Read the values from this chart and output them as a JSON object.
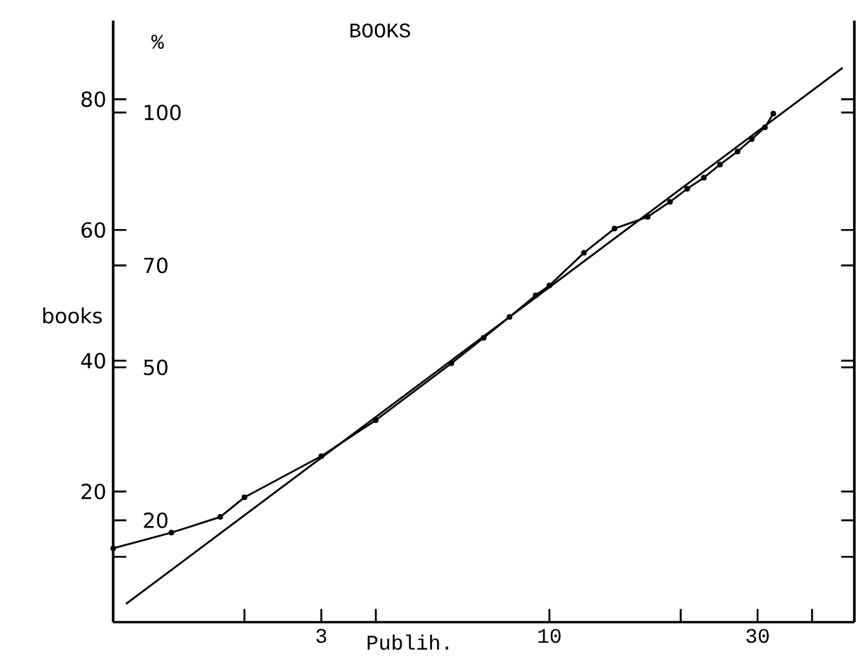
{
  "chart_data": {
    "type": "line",
    "title": "BOOKS",
    "xlabel": "Publih.",
    "ylabel": "books",
    "y2label": "%",
    "log": "x",
    "xlim": [
      1,
      50
    ],
    "ylim": [
      0,
      92
    ],
    "y2lim": [
      0,
      118
    ],
    "xticks": [
      {
        "value": 2,
        "label": null
      },
      3,
      {
        "value": 4,
        "label": null
      },
      10,
      {
        "value": 20,
        "label": null
      },
      30,
      {
        "value": 40,
        "label": null
      }
    ],
    "yticks": [
      {
        "value": 10,
        "label": null
      },
      20,
      40,
      60,
      80
    ],
    "y2ticks": [
      20,
      50,
      70,
      100
    ],
    "series": [
      {
        "color": "#000000",
        "marker": "circle",
        "line_style": "solid",
        "x": [
          1.0,
          1.36,
          1.76,
          2,
          3,
          4,
          5.96,
          7.07,
          8.1,
          9.3,
          10,
          12,
          14.1,
          16.8,
          18.9,
          20.7,
          22.6,
          24.6,
          27,
          29.1,
          31.2,
          32.6
        ],
        "values": [
          11.3,
          13.7,
          16.1,
          19.1,
          25.4,
          30.9,
          39.6,
          43.5,
          46.7,
          50,
          51.5,
          56.5,
          60.2,
          62,
          64.3,
          66.3,
          68,
          70,
          72,
          73.9,
          75.7,
          77.8
        ]
      },
      {
        "color": "#000000",
        "marker": "none",
        "line_style": "solid",
        "x": [
          1.07,
          47
        ],
        "values": [
          2.8,
          84.8
        ]
      }
    ]
  }
}
